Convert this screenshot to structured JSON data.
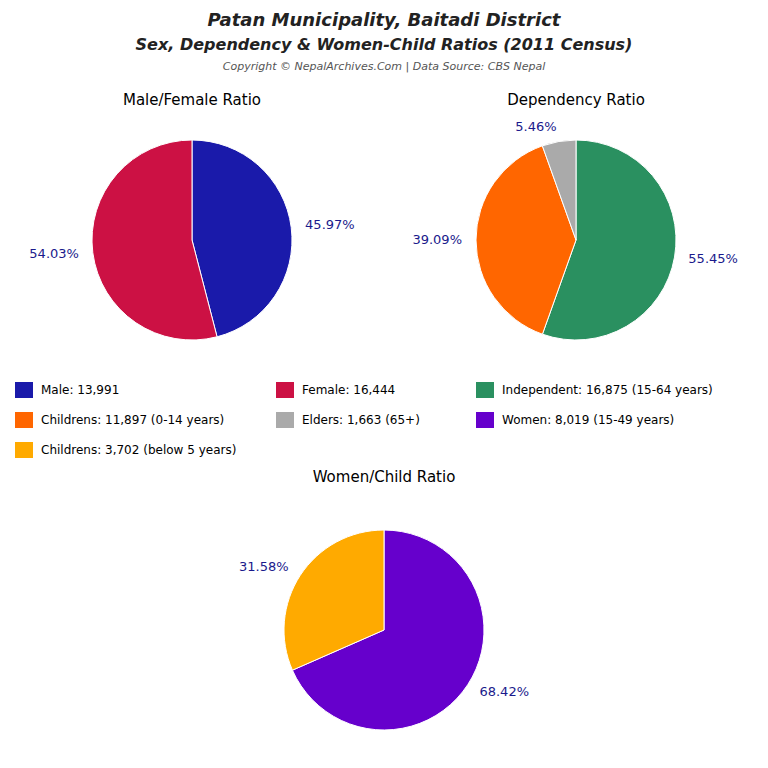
{
  "title": "Patan Municipality, Baitadi District",
  "subtitle": "Sex, Dependency & Women-Child Ratios (2011 Census)",
  "annotations": [
    "Copyright © NepalArchives.Com | Data Source: CBS Nepal"
  ],
  "chart_data": [
    {
      "type": "pie",
      "title": "Male/Female Ratio",
      "categories": [
        "Male: 13,991",
        "Female: 16,444"
      ],
      "values": [
        45.97,
        54.03
      ],
      "value_labels": [
        "45.97%",
        "54.03%"
      ],
      "colors": [
        "#1a1aaa",
        "#cc1144"
      ],
      "data_labels": true,
      "legend": "bottom"
    },
    {
      "type": "pie",
      "title": "Dependency Ratio",
      "categories": [
        "Independent: 16,875 (15-64 years)",
        "Childrens: 11,897 (0-14 years)",
        "Elders: 1,663 (65+)"
      ],
      "values": [
        55.45,
        39.09,
        5.46
      ],
      "value_labels": [
        "55.45%",
        "39.09%",
        "5.46%"
      ],
      "colors": [
        "#2a9060",
        "#ff6600",
        "#aaaaaa"
      ],
      "data_labels": true,
      "legend": "bottom"
    },
    {
      "type": "pie",
      "title": "Women/Child Ratio",
      "categories": [
        "Women: 8,019 (15-49 years)",
        "Childrens: 3,702 (below 5 years)"
      ],
      "values": [
        68.42,
        31.58
      ],
      "value_labels": [
        "68.42%",
        "31.58%"
      ],
      "colors": [
        "#6600cc",
        "#ffaa00"
      ],
      "data_labels": true,
      "legend": "top"
    }
  ]
}
